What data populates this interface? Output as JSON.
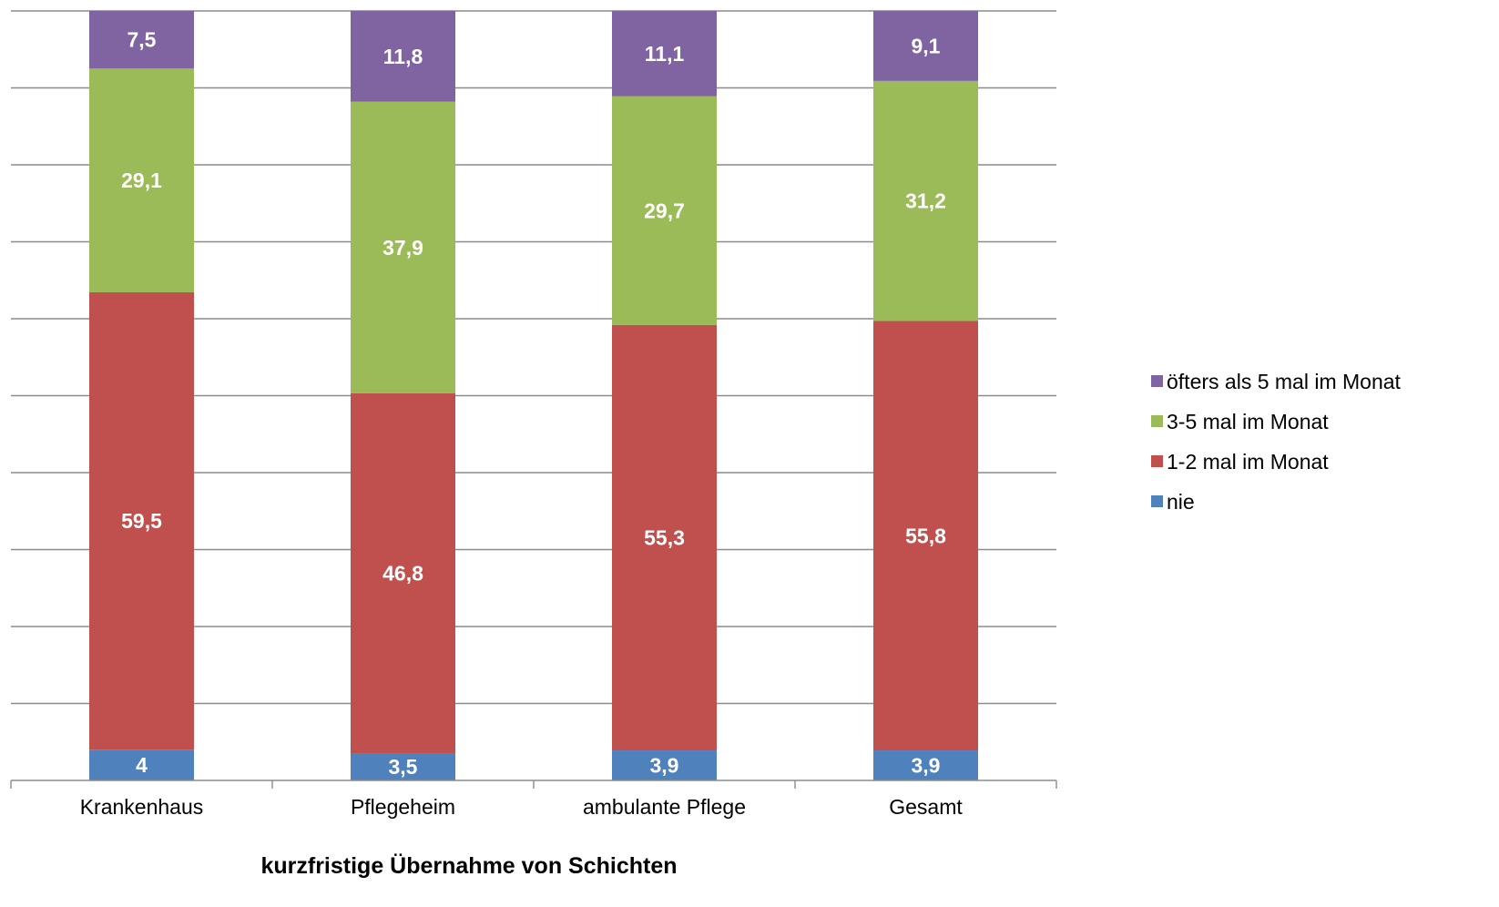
{
  "chart_data": {
    "type": "bar",
    "stacked": true,
    "normalized_percent": true,
    "categories": [
      "Krankenhaus",
      "Pflegeheim",
      "ambulante Pflege",
      "Gesamt"
    ],
    "series": [
      {
        "name": "nie",
        "color": "#4f81bd",
        "values": [
          4,
          3.5,
          3.9,
          3.9
        ],
        "labels": [
          "4",
          "3,5",
          "3,9",
          "3,9"
        ]
      },
      {
        "name": "1-2 mal im Monat",
        "color": "#c0504d",
        "values": [
          59.5,
          46.8,
          55.3,
          55.8
        ],
        "labels": [
          "59,5",
          "46,8",
          "55,3",
          "55,8"
        ]
      },
      {
        "name": "3-5 mal im Monat",
        "color": "#9bbb59",
        "values": [
          29.1,
          37.9,
          29.7,
          31.2
        ],
        "labels": [
          "29,1",
          "37,9",
          "29,7",
          "31,2"
        ]
      },
      {
        "name": "öfters als 5 mal im Monat",
        "color": "#8064a2",
        "values": [
          7.5,
          11.8,
          11.1,
          9.1
        ],
        "labels": [
          "7,5",
          "11,8",
          "11,1",
          "9,1"
        ]
      }
    ],
    "legend_order": [
      "öfters als 5 mal im Monat",
      "3-5 mal im Monat",
      "1-2 mal im Monat",
      "nie"
    ],
    "title": "",
    "xlabel": "kurzfristige Übernahme von Schichten",
    "ylabel": "",
    "ylim": [
      0,
      100
    ],
    "y_gridlines": 10,
    "grid": true,
    "legend": "right"
  }
}
